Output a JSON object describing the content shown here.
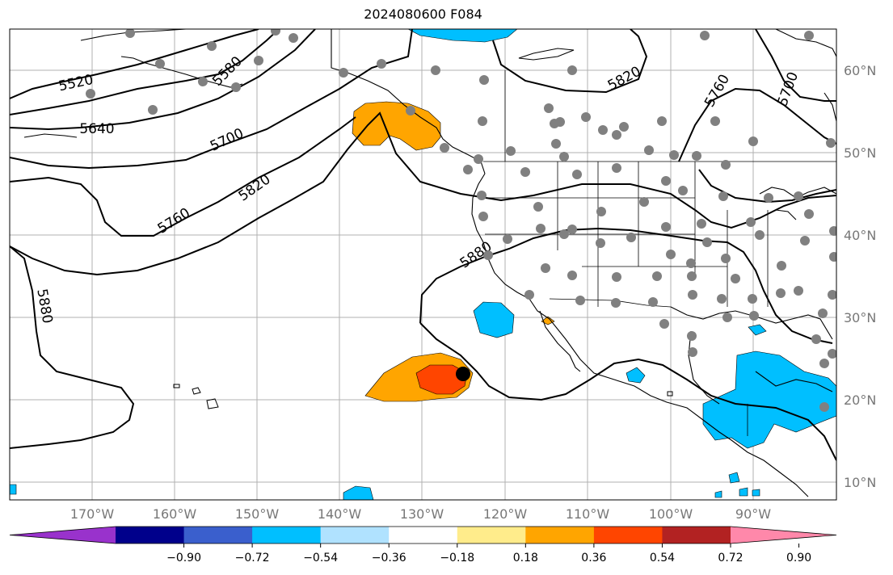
{
  "title": "2024080600 F084",
  "longitude_labels": [
    "170°W",
    "160°W",
    "150°W",
    "140°W",
    "130°W",
    "120°W",
    "110°W",
    "100°W",
    "90°W"
  ],
  "latitude_labels": [
    "60°N",
    "50°N",
    "40°N",
    "30°N",
    "20°N",
    "10°N"
  ],
  "contour_labels": [
    "5520",
    "5580",
    "5640",
    "5700",
    "5760",
    "5820",
    "5880",
    "5880",
    "5820",
    "5760",
    "5700"
  ],
  "colorbar": {
    "ticks": [
      "−0.90",
      "−0.72",
      "−0.54",
      "−0.36",
      "−0.18",
      "0.18",
      "0.36",
      "0.54",
      "0.72",
      "0.90"
    ],
    "colors": [
      "#9932cc",
      "#00008b",
      "#3a5fcd",
      "#00bfff",
      "#b0e2ff",
      "#ffffff",
      "#ffec8b",
      "#ffa500",
      "#ff4500",
      "#b22222",
      "#ff88aa"
    ]
  },
  "station_marker_color": "#808080",
  "storm_marker_color": "#000000"
}
